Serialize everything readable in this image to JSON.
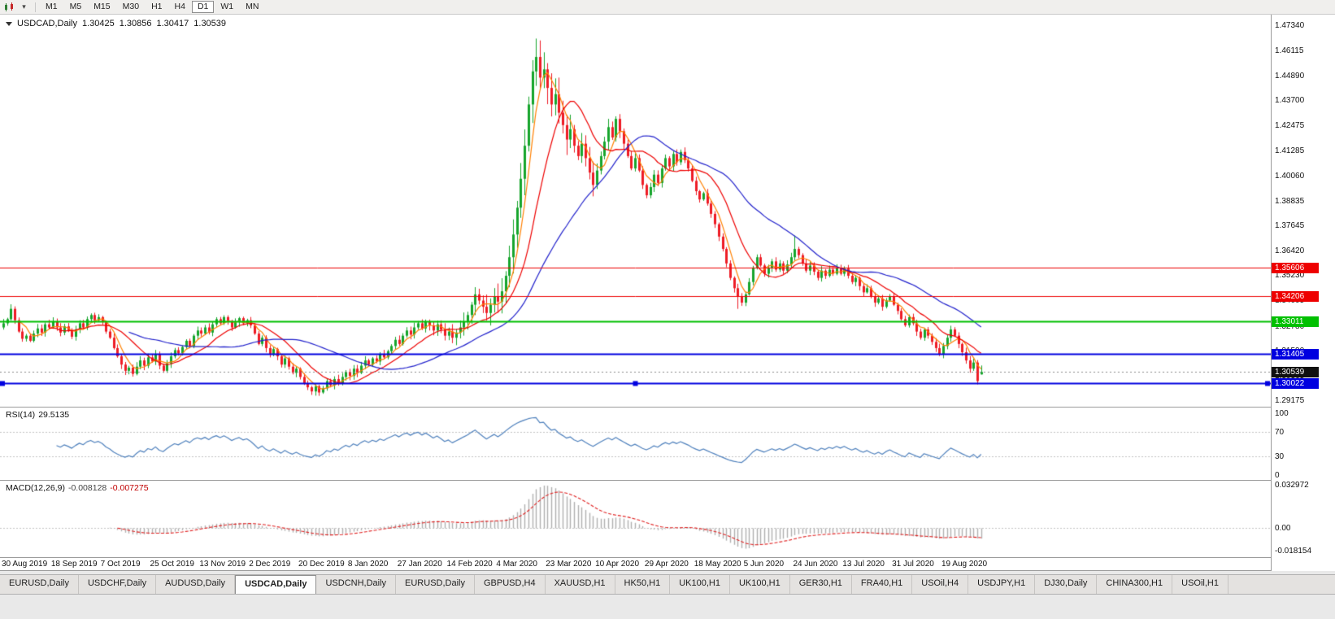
{
  "toolbar": {
    "timeframes": [
      "M1",
      "M5",
      "M15",
      "M30",
      "H1",
      "H4",
      "D1",
      "W1",
      "MN"
    ],
    "active_timeframe": "D1"
  },
  "chart_header": {
    "symbol_label": "USDCAD,Daily",
    "open": "1.30425",
    "high": "1.30856",
    "low": "1.30417",
    "close": "1.30539"
  },
  "price_axis": {
    "ticks": [
      "1.47340",
      "1.46115",
      "1.44890",
      "1.43700",
      "1.42475",
      "1.41285",
      "1.40060",
      "1.38835",
      "1.37645",
      "1.36420",
      "1.35230",
      "1.34005",
      "1.32780",
      "1.31590",
      "1.30365",
      "1.29175"
    ]
  },
  "rsi_panel": {
    "label": "RSI(14)",
    "value": "29.5135",
    "ticks": [
      "100",
      "70",
      "30",
      "0"
    ],
    "levels": [
      70,
      30
    ],
    "line_color": "#4f81bd"
  },
  "macd_panel": {
    "label": "MACD(12,26,9)",
    "value_main": "-0.008128",
    "value_signal": "-0.007275",
    "ticks": [
      "0.032972",
      "0.00",
      "-0.018154"
    ],
    "hist_color": "#b0b0b0",
    "signal_color": "#e02020"
  },
  "hlines": [
    {
      "price": 1.35606,
      "label": "1.35606",
      "color": "#ee0000",
      "width": 1
    },
    {
      "price": 1.34206,
      "label": "1.34206",
      "color": "#ee0000",
      "width": 1
    },
    {
      "price": 1.33011,
      "label": "1.33011",
      "color": "#00c000",
      "width": 2
    },
    {
      "price": 1.31405,
      "label": "1.31405",
      "color": "#0000e0",
      "width": 2
    },
    {
      "price": 1.30022,
      "label": "1.30022",
      "color": "#0000e0",
      "width": 2,
      "selected": true
    }
  ],
  "price_line": {
    "price": 1.30539,
    "label": "1.30539",
    "color": "#101010"
  },
  "tabs": {
    "active_index": 3,
    "items": [
      "EURUSD,Daily",
      "USDCHF,Daily",
      "AUDUSD,Daily",
      "USDCAD,Daily",
      "USDCNH,Daily",
      "EURUSD,Daily",
      "GBPUSD,H4",
      "XAUUSD,H1",
      "HK50,H1",
      "UK100,H1",
      "UK100,H1",
      "GER30,H1",
      "FRA40,H1",
      "USOil,H4",
      "USDJPY,H1",
      "DJ30,Daily",
      "CHINA300,H1",
      "USOil,H1"
    ]
  },
  "chart_data": {
    "type": "candlestick",
    "symbol": "USDCAD",
    "timeframe": "Daily",
    "title": "USDCAD,Daily",
    "x_range": [
      "30 Aug 2019",
      "7 Sep 2020"
    ],
    "date_labels": [
      "30 Aug 2019",
      "18 Sep 2019",
      "7 Oct 2019",
      "25 Oct 2019",
      "13 Nov 2019",
      "2 Dec 2019",
      "20 Dec 2019",
      "8 Jan 2020",
      "27 Jan 2020",
      "14 Feb 2020",
      "4 Mar 2020",
      "23 Mar 2020",
      "10 Apr 2020",
      "29 Apr 2020",
      "18 May 2020",
      "5 Jun 2020",
      "24 Jun 2020",
      "13 Jul 2020",
      "31 Jul 2020",
      "19 Aug 2020"
    ],
    "label_interval_days": 13,
    "price_scale": {
      "max": 1.4785,
      "min": 1.2886
    },
    "up_color": "#16a52c",
    "down_color": "#ee1c25",
    "first_open": 1.327,
    "closes": [
      1.329,
      1.331,
      1.336,
      1.3305,
      1.325,
      1.3215,
      1.323,
      1.3205,
      1.324,
      1.3265,
      1.3245,
      1.3285,
      1.327,
      1.33,
      1.327,
      1.3245,
      1.3275,
      1.3255,
      1.3225,
      1.326,
      1.329,
      1.327,
      1.331,
      1.333,
      1.3305,
      1.332,
      1.3295,
      1.325,
      1.322,
      1.317,
      1.313,
      1.309,
      1.306,
      1.3075,
      1.3045,
      1.308,
      1.311,
      1.3085,
      1.3125,
      1.3105,
      1.314,
      1.3085,
      1.306,
      1.3095,
      1.313,
      1.316,
      1.3145,
      1.3175,
      1.3205,
      1.318,
      1.323,
      1.3255,
      1.324,
      1.327,
      1.3245,
      1.3285,
      1.331,
      1.329,
      1.332,
      1.33,
      1.327,
      1.3295,
      1.3315,
      1.329,
      1.3305,
      1.328,
      1.324,
      1.319,
      1.322,
      1.317,
      1.314,
      1.3165,
      1.313,
      1.309,
      1.312,
      1.308,
      1.305,
      1.307,
      1.303,
      1.3,
      1.298,
      1.296,
      1.2985,
      1.2955,
      1.2975,
      1.301,
      1.299,
      1.302,
      1.3,
      1.303,
      1.3055,
      1.3035,
      1.307,
      1.305,
      1.3085,
      1.311,
      1.309,
      1.312,
      1.3105,
      1.314,
      1.3125,
      1.3155,
      1.318,
      1.321,
      1.319,
      1.323,
      1.3255,
      1.3235,
      1.327,
      1.329,
      1.3265,
      1.33,
      1.328,
      1.3255,
      1.3285,
      1.326,
      1.323,
      1.325,
      1.322,
      1.3245,
      1.327,
      1.33,
      1.333,
      1.338,
      1.343,
      1.34,
      1.337,
      1.334,
      1.338,
      1.342,
      1.3395,
      1.3445,
      1.352,
      1.361,
      1.372,
      1.385,
      1.399,
      1.415,
      1.435,
      1.451,
      1.458,
      1.448,
      1.452,
      1.443,
      1.435,
      1.44,
      1.431,
      1.425,
      1.418,
      1.423,
      1.415,
      1.41,
      1.416,
      1.409,
      1.402,
      1.396,
      1.403,
      1.41,
      1.417,
      1.424,
      1.419,
      1.428,
      1.422,
      1.416,
      1.41,
      1.404,
      1.409,
      1.403,
      1.396,
      1.391,
      1.395,
      1.401,
      1.397,
      1.404,
      1.409,
      1.405,
      1.411,
      1.407,
      1.412,
      1.408,
      1.404,
      1.398,
      1.393,
      1.389,
      1.392,
      1.387,
      1.382,
      1.377,
      1.371,
      1.365,
      1.358,
      1.351,
      1.346,
      1.342,
      1.339,
      1.343,
      1.349,
      1.356,
      1.361,
      1.357,
      1.353,
      1.356,
      1.359,
      1.355,
      1.358,
      1.3545,
      1.3575,
      1.361,
      1.365,
      1.362,
      1.358,
      1.3545,
      1.357,
      1.354,
      1.351,
      1.3545,
      1.352,
      1.355,
      1.353,
      1.356,
      1.353,
      1.3555,
      1.352,
      1.349,
      1.351,
      1.347,
      1.344,
      1.346,
      1.342,
      1.339,
      1.341,
      1.337,
      1.34,
      1.342,
      1.338,
      1.335,
      1.331,
      1.328,
      1.332,
      1.329,
      1.325,
      1.322,
      1.326,
      1.323,
      1.32,
      1.317,
      1.314,
      1.318,
      1.322,
      1.326,
      1.323,
      1.319,
      1.315,
      1.311,
      1.307,
      1.31,
      1.301,
      1.30539
    ],
    "overrides": {
      "2": {
        "h": 1.3382
      },
      "124": {
        "h": 1.3465
      },
      "140": {
        "h": 1.4669,
        "l": 1.444
      },
      "141": {
        "h": 1.466
      },
      "193": {
        "l": 1.336
      },
      "208": {
        "h": 1.3715
      },
      "256": {
        "l": 1.2994
      },
      "257": {
        "o": 1.30425,
        "h": 1.30856,
        "l": 1.30417,
        "c": 1.30539
      }
    },
    "moving_averages": [
      {
        "period": 5,
        "color": "#ff8000"
      },
      {
        "period": 13,
        "color": "#ee0000"
      },
      {
        "period": 34,
        "color": "#2222cc"
      }
    ],
    "rsi_period": 14,
    "macd": {
      "fast": 12,
      "slow": 26,
      "signal": 9,
      "scale_max": 0.033,
      "scale_min": -0.0185
    }
  }
}
